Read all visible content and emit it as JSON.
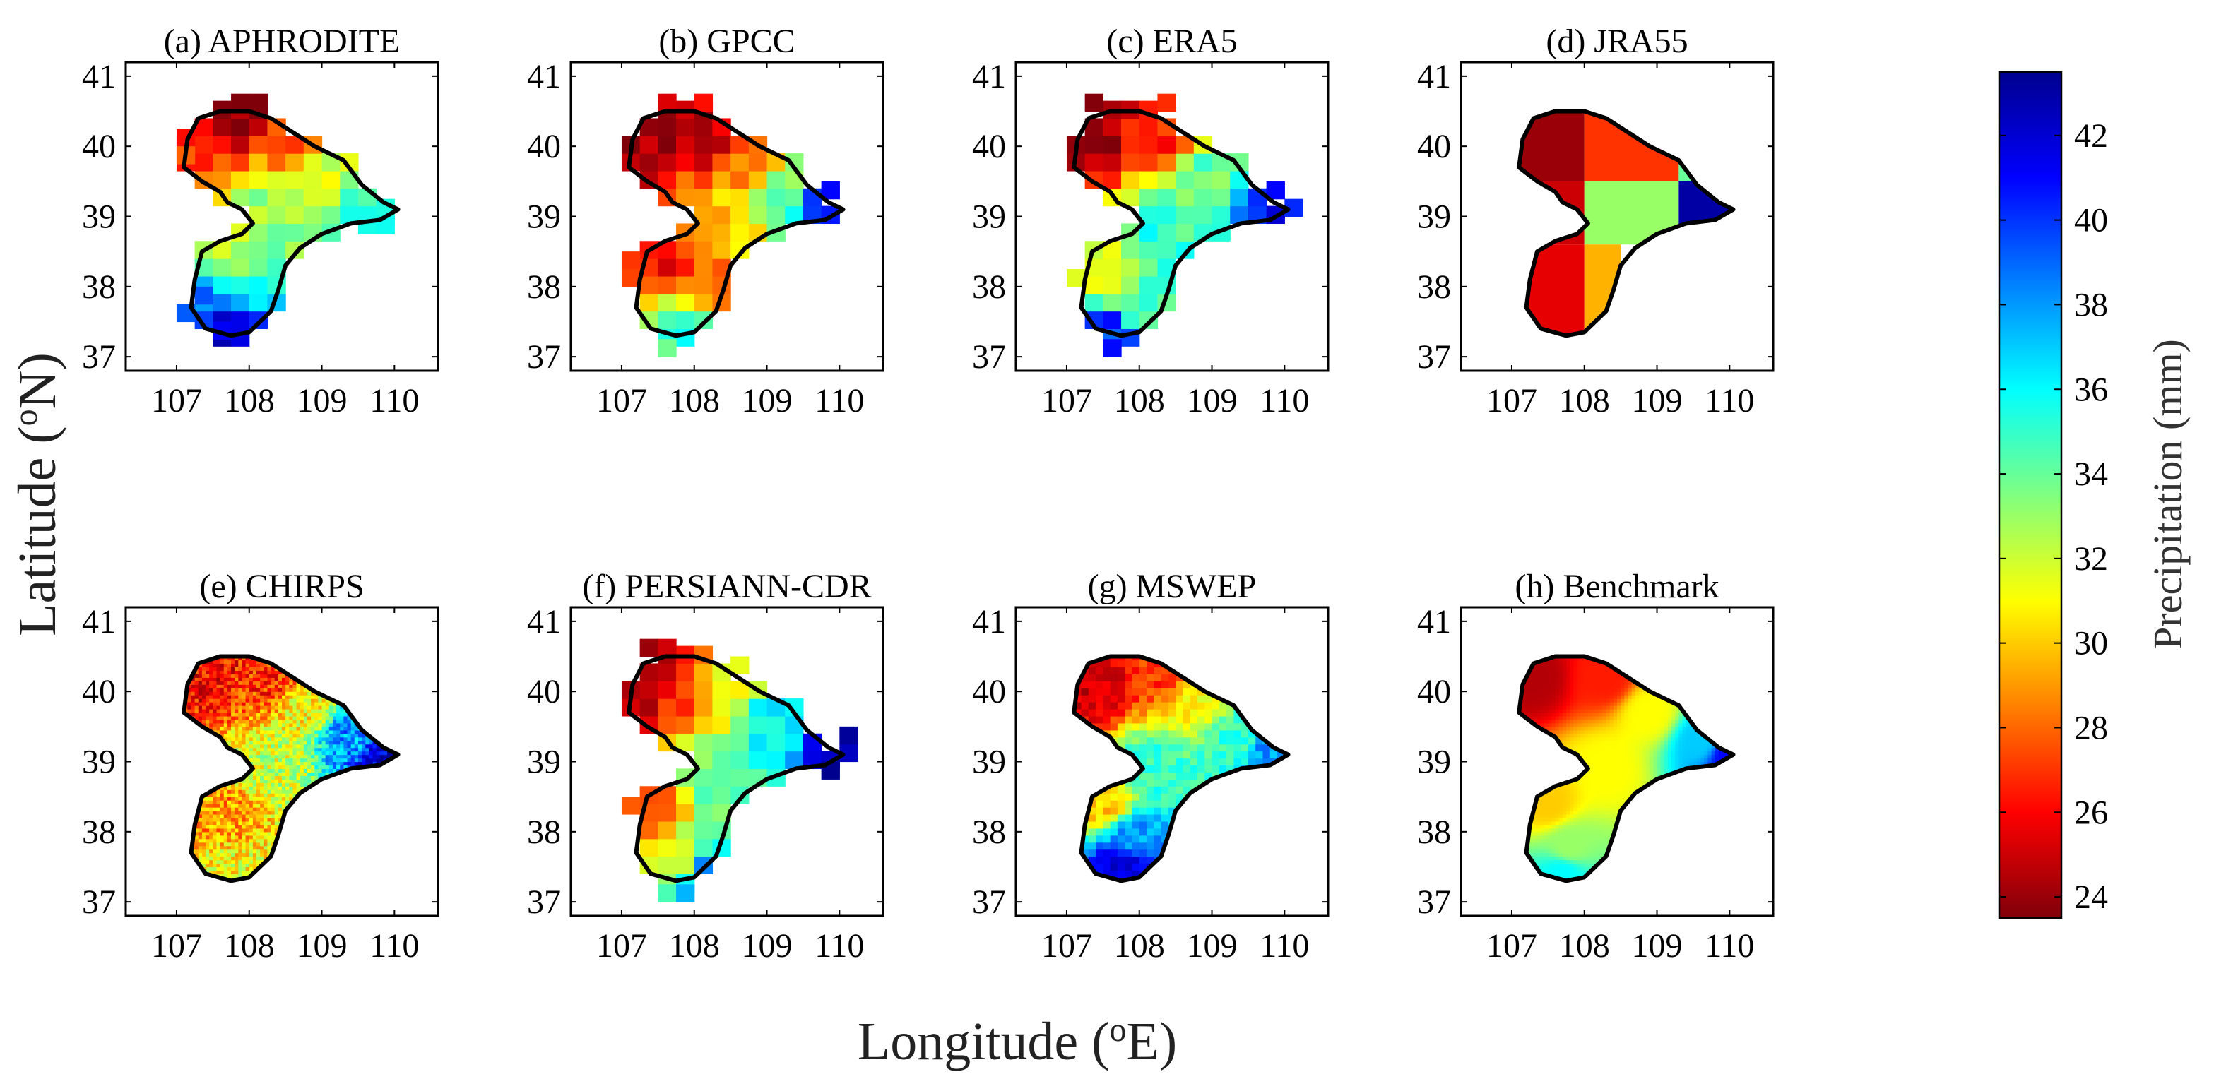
{
  "chart_data": {
    "type": "heatmap",
    "xlabel": "Longitude (oE)",
    "ylabel": "Latitude (oN)",
    "xlabel_parts": {
      "prefix": "Longitude (",
      "sup": "o",
      "suffix": "E)"
    },
    "ylabel_parts": {
      "prefix": "Latitude (",
      "sup": "o",
      "suffix": "N)"
    },
    "xlim": [
      106.3,
      110.6
    ],
    "ylim": [
      36.8,
      41.2
    ],
    "xticks": [
      107,
      108,
      109,
      110
    ],
    "yticks": [
      37,
      38,
      39,
      40,
      41
    ],
    "colorbar": {
      "label": "Precipitation (mm)",
      "range": [
        23.5,
        43.5
      ],
      "ticks": [
        24,
        26,
        28,
        30,
        32,
        34,
        36,
        38,
        40,
        42
      ],
      "colormap": "jet",
      "colormap_colors": [
        "#80000a",
        "#ff0000",
        "#ff8000",
        "#ffff00",
        "#80ff80",
        "#00ffff",
        "#0080ff",
        "#0000ff",
        "#00008f"
      ]
    },
    "basin_outline_lonlat": [
      [
        107.1,
        39.7
      ],
      [
        107.15,
        40.1
      ],
      [
        107.3,
        40.4
      ],
      [
        107.6,
        40.5
      ],
      [
        108.0,
        40.5
      ],
      [
        108.3,
        40.4
      ],
      [
        108.6,
        40.2
      ],
      [
        108.9,
        40.0
      ],
      [
        109.3,
        39.8
      ],
      [
        109.55,
        39.45
      ],
      [
        109.85,
        39.2
      ],
      [
        110.05,
        39.1
      ],
      [
        109.8,
        38.95
      ],
      [
        109.4,
        38.9
      ],
      [
        109.0,
        38.75
      ],
      [
        108.7,
        38.55
      ],
      [
        108.5,
        38.3
      ],
      [
        108.4,
        37.95
      ],
      [
        108.3,
        37.65
      ],
      [
        108.0,
        37.35
      ],
      [
        107.75,
        37.3
      ],
      [
        107.4,
        37.4
      ],
      [
        107.2,
        37.7
      ],
      [
        107.25,
        38.1
      ],
      [
        107.35,
        38.5
      ],
      [
        107.6,
        38.65
      ],
      [
        107.9,
        38.75
      ],
      [
        108.05,
        38.9
      ],
      [
        107.9,
        39.1
      ],
      [
        107.7,
        39.2
      ],
      [
        107.6,
        39.35
      ],
      [
        107.35,
        39.5
      ],
      [
        107.1,
        39.7
      ]
    ],
    "panels": [
      {
        "title": "(a) APHRODITE",
        "grid_deg": 0.25,
        "seed": 11,
        "noise": 1.2,
        "extra_cells": [
          [
            107.875,
            40.625
          ],
          [
            108.125,
            40.625
          ],
          [
            107.125,
            40.125
          ],
          [
            107.125,
            39.875
          ],
          [
            109.875,
            39.125
          ],
          [
            109.625,
            38.875
          ],
          [
            109.875,
            38.875
          ],
          [
            107.375,
            37.875
          ],
          [
            107.125,
            37.625
          ],
          [
            107.625,
            37.375
          ]
        ],
        "field": [
          {
            "lon": 107.9,
            "lat": 40.5,
            "value": 24
          },
          {
            "lon": 107.2,
            "lat": 40.0,
            "value": 27
          },
          {
            "lon": 108.6,
            "lat": 40.0,
            "value": 28
          },
          {
            "lon": 108.8,
            "lat": 39.6,
            "value": 32
          },
          {
            "lon": 109.7,
            "lat": 39.2,
            "value": 35
          },
          {
            "lon": 108.3,
            "lat": 39.0,
            "value": 33
          },
          {
            "lon": 107.7,
            "lat": 38.5,
            "value": 32
          },
          {
            "lon": 107.8,
            "lat": 38.0,
            "value": 35
          },
          {
            "lon": 107.7,
            "lat": 37.5,
            "value": 42
          },
          {
            "lon": 107.3,
            "lat": 37.7,
            "value": 39
          }
        ]
      },
      {
        "title": "(b) GPCC",
        "grid_deg": 0.25,
        "seed": 23,
        "noise": 1.2,
        "extra_cells": [
          [
            107.625,
            40.625
          ],
          [
            108.125,
            40.625
          ],
          [
            107.125,
            38.375
          ],
          [
            107.125,
            38.125
          ],
          [
            109.875,
            39.375
          ],
          [
            107.625,
            37.125
          ]
        ],
        "field": [
          {
            "lon": 107.3,
            "lat": 40.2,
            "value": 24
          },
          {
            "lon": 108.2,
            "lat": 40.2,
            "value": 25
          },
          {
            "lon": 108.8,
            "lat": 39.8,
            "value": 28
          },
          {
            "lon": 109.3,
            "lat": 39.4,
            "value": 34
          },
          {
            "lon": 109.8,
            "lat": 39.2,
            "value": 40
          },
          {
            "lon": 108.3,
            "lat": 38.9,
            "value": 30
          },
          {
            "lon": 107.6,
            "lat": 38.3,
            "value": 26
          },
          {
            "lon": 108.0,
            "lat": 38.0,
            "value": 28
          },
          {
            "lon": 107.8,
            "lat": 37.5,
            "value": 35
          }
        ]
      },
      {
        "title": "(c) ERA5",
        "grid_deg": 0.25,
        "seed": 37,
        "noise": 1.2,
        "extra_cells": [
          [
            107.375,
            40.625
          ],
          [
            108.375,
            40.625
          ],
          [
            110.125,
            39.125
          ],
          [
            109.875,
            39.375
          ],
          [
            107.125,
            38.125
          ],
          [
            107.625,
            37.125
          ]
        ],
        "field": [
          {
            "lon": 107.3,
            "lat": 40.2,
            "value": 24
          },
          {
            "lon": 108.4,
            "lat": 40.1,
            "value": 27
          },
          {
            "lon": 108.9,
            "lat": 39.6,
            "value": 34
          },
          {
            "lon": 109.9,
            "lat": 39.1,
            "value": 41
          },
          {
            "lon": 108.3,
            "lat": 38.8,
            "value": 35
          },
          {
            "lon": 107.6,
            "lat": 38.2,
            "value": 31
          },
          {
            "lon": 108.1,
            "lat": 37.6,
            "value": 35
          },
          {
            "lon": 107.6,
            "lat": 37.3,
            "value": 40
          }
        ]
      },
      {
        "title": "(d) JRA55",
        "grid_deg": 0.0,
        "seed": 41,
        "noise": 0,
        "blocks": [
          {
            "lon_range": [
              107.0,
              108.0
            ],
            "lat_range": [
              39.5,
              40.6
            ],
            "value": 24
          },
          {
            "lon_range": [
              108.0,
              109.3
            ],
            "lat_range": [
              39.5,
              40.6
            ],
            "value": 27
          },
          {
            "lon_range": [
              109.3,
              110.2
            ],
            "lat_range": [
              39.5,
              40.6
            ],
            "value": 34
          },
          {
            "lon_range": [
              107.0,
              108.0
            ],
            "lat_range": [
              38.6,
              39.5
            ],
            "value": 25
          },
          {
            "lon_range": [
              108.0,
              109.3
            ],
            "lat_range": [
              38.6,
              39.5
            ],
            "value": 33
          },
          {
            "lon_range": [
              109.3,
              110.2
            ],
            "lat_range": [
              38.6,
              39.5
            ],
            "value": 43
          },
          {
            "lon_range": [
              107.0,
              108.0
            ],
            "lat_range": [
              37.2,
              38.6
            ],
            "value": 25.5
          },
          {
            "lon_range": [
              108.0,
              108.5
            ],
            "lat_range": [
              37.2,
              38.6
            ],
            "value": 29.5
          }
        ]
      },
      {
        "title": "(e) CHIRPS",
        "grid_deg": 0.05,
        "seed": 53,
        "noise": 2.2,
        "field": [
          {
            "lon": 107.4,
            "lat": 40.3,
            "value": 26
          },
          {
            "lon": 108.3,
            "lat": 40.2,
            "value": 27
          },
          {
            "lon": 108.8,
            "lat": 39.8,
            "value": 31
          },
          {
            "lon": 109.4,
            "lat": 39.4,
            "value": 38
          },
          {
            "lon": 109.9,
            "lat": 39.1,
            "value": 42
          },
          {
            "lon": 108.3,
            "lat": 38.9,
            "value": 32
          },
          {
            "lon": 107.7,
            "lat": 38.2,
            "value": 29
          },
          {
            "lon": 107.8,
            "lat": 37.5,
            "value": 31
          }
        ]
      },
      {
        "title": "(f) PERSIANN-CDR",
        "grid_deg": 0.25,
        "seed": 67,
        "noise": 1.0,
        "extra_cells": [
          [
            107.375,
            40.625
          ],
          [
            107.625,
            40.625
          ],
          [
            108.625,
            40.375
          ],
          [
            110.125,
            39.125
          ],
          [
            110.125,
            39.375
          ],
          [
            109.875,
            38.875
          ],
          [
            107.125,
            38.375
          ],
          [
            107.625,
            37.125
          ],
          [
            107.875,
            37.125
          ]
        ],
        "field": [
          {
            "lon": 107.3,
            "lat": 40.2,
            "value": 24
          },
          {
            "lon": 107.9,
            "lat": 40.0,
            "value": 27
          },
          {
            "lon": 108.4,
            "lat": 40.0,
            "value": 31
          },
          {
            "lon": 109.0,
            "lat": 39.5,
            "value": 36
          },
          {
            "lon": 110.0,
            "lat": 39.1,
            "value": 43
          },
          {
            "lon": 108.3,
            "lat": 38.8,
            "value": 34
          },
          {
            "lon": 107.4,
            "lat": 38.3,
            "value": 28
          },
          {
            "lon": 107.8,
            "lat": 37.6,
            "value": 32
          },
          {
            "lon": 108.1,
            "lat": 37.4,
            "value": 38
          }
        ]
      },
      {
        "title": "(g) MSWEP",
        "grid_deg": 0.1,
        "seed": 79,
        "noise": 1.1,
        "field": [
          {
            "lon": 107.4,
            "lat": 40.1,
            "value": 25
          },
          {
            "lon": 108.3,
            "lat": 40.3,
            "value": 27
          },
          {
            "lon": 108.8,
            "lat": 39.8,
            "value": 31
          },
          {
            "lon": 109.3,
            "lat": 39.3,
            "value": 35
          },
          {
            "lon": 109.8,
            "lat": 39.1,
            "value": 38
          },
          {
            "lon": 108.2,
            "lat": 38.9,
            "value": 35
          },
          {
            "lon": 107.5,
            "lat": 38.4,
            "value": 30
          },
          {
            "lon": 107.9,
            "lat": 37.9,
            "value": 38
          },
          {
            "lon": 107.8,
            "lat": 37.5,
            "value": 42
          }
        ]
      },
      {
        "title": "(h) Benchmark",
        "grid_deg": 0.05,
        "seed": 83,
        "noise": 0,
        "field": [
          {
            "lon": 107.3,
            "lat": 40.2,
            "value": 24.5
          },
          {
            "lon": 108.3,
            "lat": 40.2,
            "value": 26.5
          },
          {
            "lon": 108.9,
            "lat": 39.7,
            "value": 31
          },
          {
            "lon": 109.6,
            "lat": 39.3,
            "value": 37
          },
          {
            "lon": 110.0,
            "lat": 39.1,
            "value": 41
          },
          {
            "lon": 108.3,
            "lat": 38.9,
            "value": 31
          },
          {
            "lon": 107.5,
            "lat": 38.4,
            "value": 30
          },
          {
            "lon": 107.8,
            "lat": 37.8,
            "value": 33
          },
          {
            "lon": 107.7,
            "lat": 37.4,
            "value": 36
          }
        ]
      }
    ]
  }
}
